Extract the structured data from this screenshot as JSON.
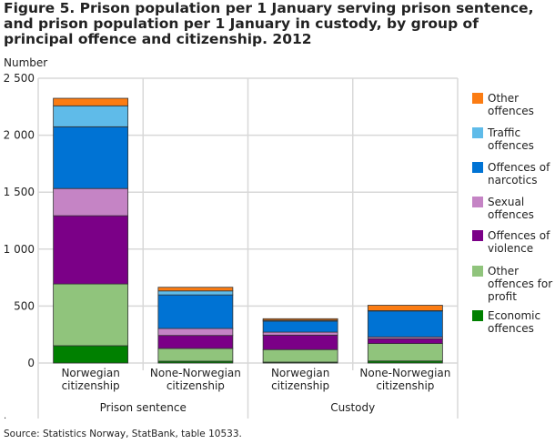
{
  "chart_data": {
    "type": "bar",
    "stacked": true,
    "title": "Figure 5. Prison population per 1 January serving prison sentence, and prison population per 1 January in custody, by group of principal offence and citizenship. 2012",
    "ylabel": "Number",
    "ylim": [
      0,
      2500
    ],
    "yticks": [
      0,
      500,
      1000,
      1500,
      2000,
      2500
    ],
    "ytick_labels": [
      "0",
      "500",
      "1 000",
      "1 500",
      "2 000",
      "2 500"
    ],
    "grid": true,
    "legend_placement": "right",
    "categories": [
      "Norwegian citizenship",
      "None-Norwegian citizenship",
      "Norwegian citizenship",
      "None-Norwegian citizenship"
    ],
    "groups": [
      {
        "label": "Prison sentence",
        "categories": [
          0,
          1
        ]
      },
      {
        "label": "Custody",
        "categories": [
          2,
          3
        ]
      }
    ],
    "series": [
      {
        "name": "Economic offences",
        "color": "#008000",
        "values": [
          152,
          16,
          8,
          18
        ]
      },
      {
        "name": "Other offences for profit",
        "color": "#90c47c",
        "values": [
          542,
          112,
          110,
          153
        ]
      },
      {
        "name": "Offences of violence",
        "color": "#7b0087",
        "values": [
          599,
          114,
          127,
          42
        ]
      },
      {
        "name": "Sexual offences",
        "color": "#c584c5",
        "values": [
          239,
          61,
          26,
          16
        ]
      },
      {
        "name": "Offences of narcotics",
        "color": "#0073d4",
        "values": [
          542,
          295,
          97,
          229
        ]
      },
      {
        "name": "Traffic offences",
        "color": "#5fbbe9",
        "values": [
          184,
          35,
          8,
          2
        ]
      },
      {
        "name": "Other offences",
        "color": "#fb7c13",
        "values": [
          66,
          32,
          13,
          47
        ]
      }
    ]
  },
  "footnote": ".",
  "source": "Source: Statistics Norway,  StatBank, table 10533."
}
